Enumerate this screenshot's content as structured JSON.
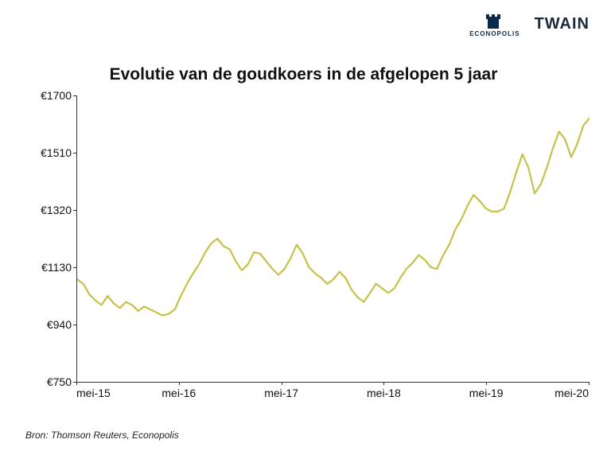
{
  "logos": {
    "econopolis_text": "ECONOPOLIS",
    "twain_text": "TWAIN",
    "tower_color": "#0a2a4a"
  },
  "title": "Evolutie van de goudkoers in de afgelopen 5 jaar",
  "source": "Bron: Thomson Reuters, Econopolis",
  "chart": {
    "type": "line",
    "background_color": "#ffffff",
    "line_color": "#c7c14a",
    "line_width": 2.2,
    "axis_color": "#333333",
    "text_color": "#111111",
    "grid": false,
    "ylim": [
      750,
      1700
    ],
    "yticks": [
      750,
      940,
      1130,
      1320,
      1510,
      1700
    ],
    "ytick_labels": [
      "€750",
      "€940",
      "€1130",
      "€1320",
      "€1510",
      "€1700"
    ],
    "label_fontsize": 14,
    "title_fontsize": 21,
    "title_fontweight": 700,
    "xlim": [
      0,
      60
    ],
    "xticks": [
      0,
      12,
      24,
      36,
      48,
      60
    ],
    "xtick_labels": [
      "mei-15",
      "mei-16",
      "mei-17",
      "mei-18",
      "mei-19",
      "mei-20"
    ],
    "x_unit": "months_from_may_2015",
    "series": [
      {
        "name": "gold_price_eur",
        "values": [
          1090,
          1075,
          1040,
          1020,
          1005,
          1035,
          1010,
          995,
          1015,
          1005,
          985,
          1000,
          990,
          980,
          970,
          975,
          990,
          1035,
          1075,
          1110,
          1140,
          1180,
          1210,
          1225,
          1200,
          1190,
          1150,
          1120,
          1140,
          1180,
          1175,
          1150,
          1125,
          1105,
          1125,
          1160,
          1205,
          1175,
          1130,
          1110,
          1095,
          1075,
          1090,
          1115,
          1095,
          1055,
          1030,
          1015,
          1045,
          1075,
          1060,
          1045,
          1060,
          1095,
          1125,
          1145,
          1170,
          1155,
          1130,
          1125,
          1170,
          1205,
          1255,
          1290,
          1335,
          1370,
          1350,
          1325,
          1315,
          1315,
          1325,
          1380,
          1445,
          1505,
          1460,
          1375,
          1405,
          1460,
          1525,
          1580,
          1555,
          1495,
          1540,
          1600,
          1625
        ]
      }
    ]
  }
}
